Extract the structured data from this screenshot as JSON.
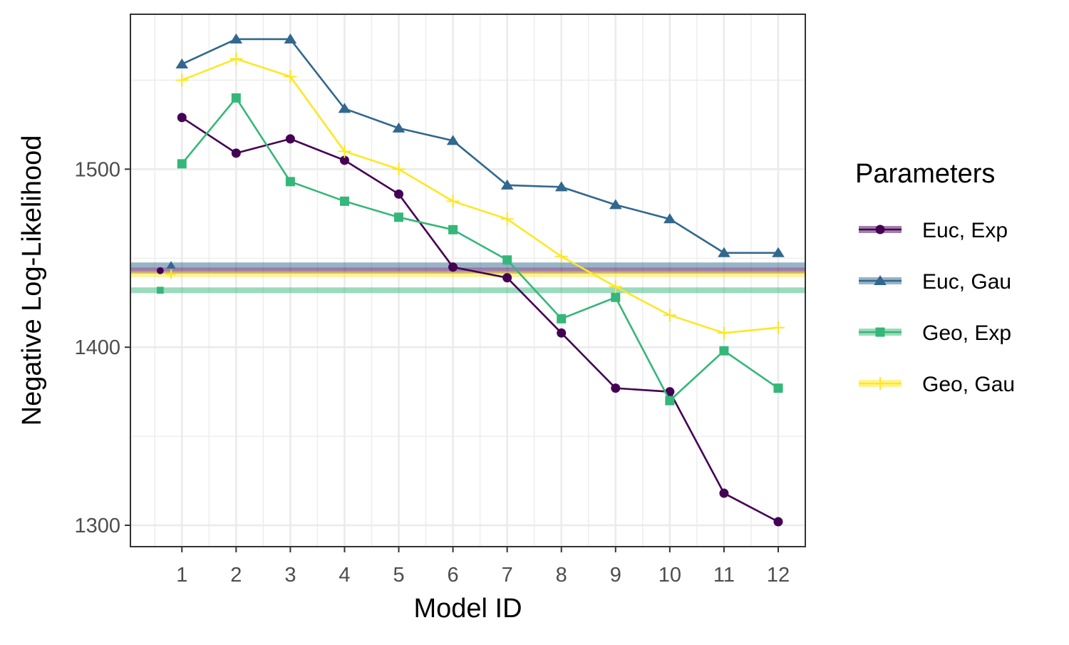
{
  "chart_data": {
    "type": "line",
    "title": "",
    "xlabel": "Model ID",
    "ylabel": "Negative Log-Likelihood",
    "x": [
      1,
      2,
      3,
      4,
      5,
      6,
      7,
      8,
      9,
      10,
      11,
      12
    ],
    "xticks": [
      "1",
      "2",
      "3",
      "4",
      "5",
      "6",
      "7",
      "8",
      "9",
      "10",
      "11",
      "12"
    ],
    "yticks": [
      "1300",
      "1400",
      "1500"
    ],
    "xlim": [
      0.05,
      12.5
    ],
    "ylim": [
      1288,
      1587
    ],
    "grid": true,
    "legend": {
      "title": "Parameters",
      "placement": "right"
    },
    "series": [
      {
        "name": "Euc, Exp",
        "color": "#440154",
        "marker": "circle",
        "values": [
          1529,
          1509,
          1517,
          1505,
          1486,
          1445,
          1439,
          1408,
          1377,
          1375,
          1318,
          1302
        ],
        "baseline": 1443,
        "baseline_marker_x": 0.6
      },
      {
        "name": "Euc, Gau",
        "color": "#31688E",
        "marker": "triangle",
        "values": [
          1559,
          1573,
          1573,
          1534,
          1523,
          1516,
          1491,
          1490,
          1480,
          1472,
          1453,
          1453
        ],
        "baseline": 1446,
        "baseline_marker_x": 0.8
      },
      {
        "name": "Geo, Exp",
        "color": "#35B779",
        "marker": "square",
        "values": [
          1503,
          1540,
          1493,
          1482,
          1473,
          1466,
          1449,
          1416,
          1428,
          1370,
          1398,
          1377
        ],
        "baseline": 1432,
        "baseline_marker_x": 0.6
      },
      {
        "name": "Geo, Gau",
        "color": "#FDE725",
        "marker": "plus",
        "values": [
          1550,
          1562,
          1552,
          1510,
          1500,
          1482,
          1472,
          1451,
          1434,
          1418,
          1408,
          1411
        ],
        "baseline": 1441,
        "baseline_marker_x": 0.8
      }
    ]
  }
}
